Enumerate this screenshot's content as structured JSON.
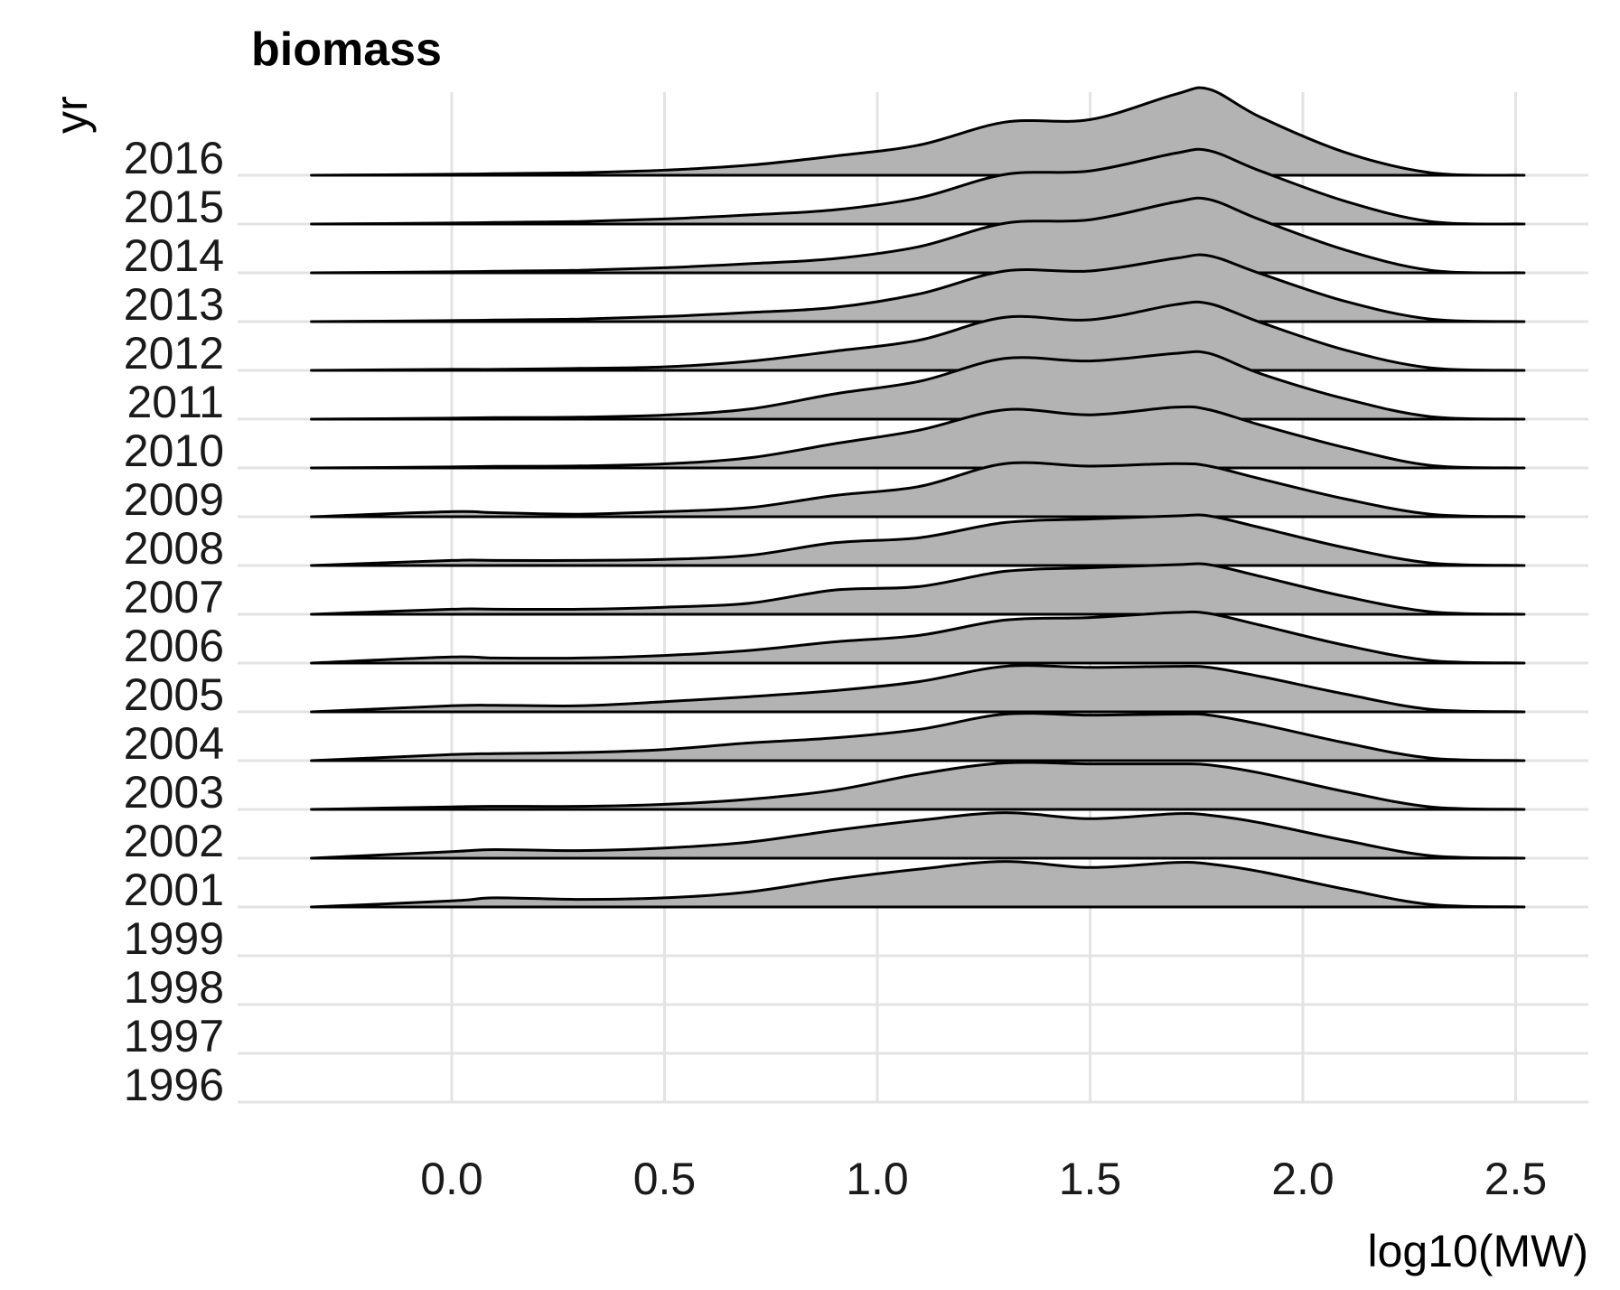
{
  "chart_data": {
    "type": "ridgeline",
    "title": "biomass",
    "xlabel": "log10(MW)",
    "ylabel": "yr",
    "xlim": [
      -0.5,
      2.6
    ],
    "xticks": [
      "0.0",
      "0.5",
      "1.0",
      "1.5",
      "2.0",
      "2.5"
    ],
    "xtick_values": [
      0.0,
      0.5,
      1.0,
      1.5,
      2.0,
      2.5
    ],
    "categories": [
      "1996",
      "1997",
      "1998",
      "1999",
      "2001",
      "2002",
      "2003",
      "2004",
      "2005",
      "2006",
      "2007",
      "2008",
      "2009",
      "2010",
      "2011",
      "2012",
      "2013",
      "2014",
      "2015",
      "2016"
    ],
    "density_range": [
      -0.33,
      2.52
    ],
    "grid": true,
    "legend": "none",
    "colors": {
      "fill": "#b3b3b3",
      "line": "#000000",
      "grid": "#e3e3e3"
    },
    "series": [
      {
        "name": "2001",
        "x": [
          -0.33,
          0.0,
          0.1,
          0.3,
          0.5,
          0.7,
          0.9,
          1.1,
          1.3,
          1.5,
          1.7,
          1.78,
          1.9,
          2.1,
          2.3,
          2.52
        ],
        "y": [
          0,
          0.12,
          0.18,
          0.15,
          0.18,
          0.3,
          0.55,
          0.75,
          0.9,
          0.78,
          0.88,
          0.85,
          0.7,
          0.35,
          0.05,
          0
        ]
      },
      {
        "name": "2002",
        "x": [
          -0.33,
          0.0,
          0.1,
          0.3,
          0.5,
          0.7,
          0.9,
          1.1,
          1.3,
          1.5,
          1.7,
          1.78,
          1.9,
          2.1,
          2.3,
          2.52
        ],
        "y": [
          0,
          0.13,
          0.17,
          0.15,
          0.2,
          0.32,
          0.55,
          0.75,
          0.9,
          0.78,
          0.88,
          0.85,
          0.7,
          0.35,
          0.05,
          0
        ]
      },
      {
        "name": "2003",
        "x": [
          -0.33,
          0.0,
          0.1,
          0.3,
          0.5,
          0.7,
          0.9,
          1.1,
          1.3,
          1.5,
          1.7,
          1.78,
          1.9,
          2.1,
          2.3,
          2.52
        ],
        "y": [
          0,
          0.05,
          0.06,
          0.06,
          0.1,
          0.2,
          0.38,
          0.7,
          0.92,
          0.9,
          0.9,
          0.88,
          0.72,
          0.35,
          0.05,
          0
        ]
      },
      {
        "name": "2004",
        "x": [
          -0.33,
          0.0,
          0.1,
          0.3,
          0.5,
          0.7,
          0.9,
          1.1,
          1.3,
          1.5,
          1.7,
          1.78,
          1.9,
          2.1,
          2.3,
          2.52
        ],
        "y": [
          0,
          0.12,
          0.14,
          0.16,
          0.22,
          0.35,
          0.45,
          0.62,
          0.92,
          0.9,
          0.92,
          0.9,
          0.72,
          0.35,
          0.05,
          0
        ]
      },
      {
        "name": "2005",
        "x": [
          -0.33,
          0.0,
          0.1,
          0.3,
          0.5,
          0.7,
          0.9,
          1.1,
          1.3,
          1.5,
          1.7,
          1.78,
          1.9,
          2.1,
          2.3,
          2.52
        ],
        "y": [
          0,
          0.12,
          0.13,
          0.12,
          0.2,
          0.3,
          0.42,
          0.6,
          0.9,
          0.88,
          0.9,
          0.88,
          0.7,
          0.35,
          0.05,
          0
        ]
      },
      {
        "name": "2006",
        "x": [
          -0.33,
          0.0,
          0.1,
          0.3,
          0.5,
          0.7,
          0.9,
          1.1,
          1.3,
          1.5,
          1.7,
          1.78,
          1.9,
          2.1,
          2.3,
          2.52
        ],
        "y": [
          0,
          0.12,
          0.1,
          0.1,
          0.15,
          0.25,
          0.42,
          0.55,
          0.85,
          0.9,
          1.0,
          0.98,
          0.75,
          0.35,
          0.05,
          0
        ]
      },
      {
        "name": "2007",
        "x": [
          -0.33,
          0.0,
          0.1,
          0.3,
          0.5,
          0.7,
          0.9,
          1.1,
          1.3,
          1.5,
          1.7,
          1.78,
          1.9,
          2.1,
          2.3,
          2.52
        ],
        "y": [
          0,
          0.1,
          0.1,
          0.1,
          0.14,
          0.22,
          0.48,
          0.55,
          0.85,
          0.92,
          0.98,
          0.98,
          0.75,
          0.35,
          0.05,
          0
        ]
      },
      {
        "name": "2008",
        "x": [
          -0.33,
          0.0,
          0.1,
          0.3,
          0.5,
          0.7,
          0.9,
          1.1,
          1.3,
          1.5,
          1.7,
          1.78,
          1.9,
          2.1,
          2.3,
          2.52
        ],
        "y": [
          0,
          0.1,
          0.1,
          0.1,
          0.12,
          0.2,
          0.45,
          0.55,
          0.85,
          0.92,
          0.98,
          0.98,
          0.75,
          0.35,
          0.05,
          0
        ]
      },
      {
        "name": "2009",
        "x": [
          -0.33,
          0.0,
          0.1,
          0.3,
          0.5,
          0.7,
          0.9,
          1.1,
          1.3,
          1.5,
          1.7,
          1.78,
          1.9,
          2.1,
          2.3,
          2.52
        ],
        "y": [
          0,
          0.1,
          0.08,
          0.05,
          0.1,
          0.18,
          0.42,
          0.6,
          1.05,
          1.0,
          1.05,
          1.0,
          0.75,
          0.35,
          0.05,
          0
        ]
      },
      {
        "name": "2010",
        "x": [
          -0.33,
          0.0,
          0.1,
          0.3,
          0.5,
          0.7,
          0.9,
          1.1,
          1.3,
          1.5,
          1.7,
          1.78,
          1.9,
          2.1,
          2.3,
          2.52
        ],
        "y": [
          0,
          0.02,
          0.03,
          0.04,
          0.08,
          0.2,
          0.48,
          0.75,
          1.15,
          1.05,
          1.2,
          1.15,
          0.85,
          0.4,
          0.05,
          0
        ]
      },
      {
        "name": "2011",
        "x": [
          -0.33,
          0.0,
          0.1,
          0.3,
          0.5,
          0.7,
          0.9,
          1.1,
          1.3,
          1.5,
          1.7,
          1.78,
          1.9,
          2.1,
          2.3,
          2.52
        ],
        "y": [
          0,
          0.02,
          0.03,
          0.04,
          0.08,
          0.2,
          0.5,
          0.75,
          1.2,
          1.15,
          1.3,
          1.3,
          0.9,
          0.4,
          0.05,
          0
        ]
      },
      {
        "name": "2012",
        "x": [
          -0.33,
          0.0,
          0.1,
          0.3,
          0.5,
          0.7,
          0.9,
          1.1,
          1.3,
          1.5,
          1.7,
          1.78,
          1.9,
          2.1,
          2.3,
          2.52
        ],
        "y": [
          0,
          0.02,
          0.02,
          0.04,
          0.07,
          0.18,
          0.38,
          0.6,
          1.05,
          1.0,
          1.3,
          1.32,
          0.95,
          0.4,
          0.05,
          0
        ]
      },
      {
        "name": "2013",
        "x": [
          -0.33,
          0.0,
          0.1,
          0.3,
          0.5,
          0.7,
          0.9,
          1.1,
          1.3,
          1.5,
          1.7,
          1.78,
          1.9,
          2.1,
          2.3,
          2.52
        ],
        "y": [
          0,
          0.02,
          0.03,
          0.05,
          0.1,
          0.18,
          0.28,
          0.55,
          1.0,
          1.0,
          1.25,
          1.3,
          0.95,
          0.4,
          0.05,
          0
        ]
      },
      {
        "name": "2014",
        "x": [
          -0.33,
          0.0,
          0.1,
          0.3,
          0.5,
          0.7,
          0.9,
          1.1,
          1.3,
          1.5,
          1.7,
          1.78,
          1.9,
          2.1,
          2.3,
          2.52
        ],
        "y": [
          0,
          0.02,
          0.03,
          0.05,
          0.1,
          0.18,
          0.28,
          0.52,
          0.98,
          1.05,
          1.4,
          1.45,
          1.05,
          0.45,
          0.05,
          0
        ]
      },
      {
        "name": "2015",
        "x": [
          -0.33,
          0.0,
          0.1,
          0.3,
          0.5,
          0.7,
          0.9,
          1.1,
          1.3,
          1.5,
          1.7,
          1.78,
          1.9,
          2.1,
          2.3,
          2.52
        ],
        "y": [
          0,
          0.02,
          0.03,
          0.05,
          0.1,
          0.18,
          0.28,
          0.52,
          0.98,
          1.05,
          1.4,
          1.45,
          1.05,
          0.45,
          0.05,
          0
        ]
      },
      {
        "name": "2016",
        "x": [
          -0.33,
          0.0,
          0.1,
          0.3,
          0.5,
          0.7,
          0.9,
          1.1,
          1.3,
          1.5,
          1.7,
          1.78,
          1.9,
          2.1,
          2.3,
          2.52
        ],
        "y": [
          0,
          0.02,
          0.03,
          0.05,
          0.1,
          0.2,
          0.38,
          0.6,
          1.05,
          1.1,
          1.6,
          1.7,
          1.15,
          0.45,
          0.05,
          0
        ]
      }
    ]
  }
}
